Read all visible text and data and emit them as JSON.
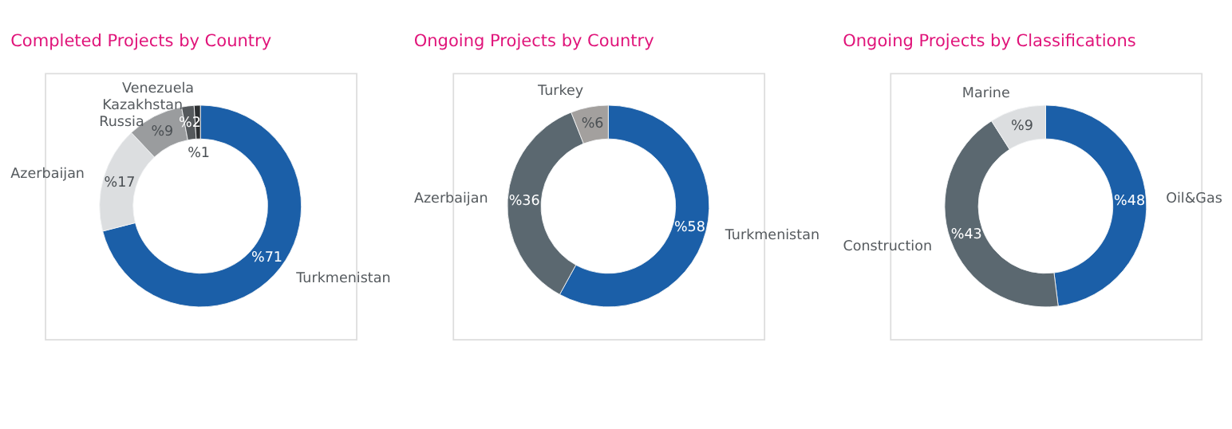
{
  "chart_data": [
    {
      "type": "donut",
      "title": "Completed Projects by Country",
      "categories": [
        "Turkmenistan",
        "Azerbaijan",
        "Russia",
        "Kazakhstan",
        "Venezuela"
      ],
      "values": [
        71,
        17,
        9,
        2,
        1
      ],
      "colors": [
        "#1b5fa8",
        "#dcdee0",
        "#9a9c9e",
        "#55595c",
        "#2c2f31"
      ],
      "value_labels": [
        "%71",
        "%17",
        "%9",
        "%2",
        "%1"
      ]
    },
    {
      "type": "donut",
      "title": "Ongoing Projects by Country",
      "categories": [
        "Turkmenistan",
        "Azerbaijan",
        "Turkey"
      ],
      "values": [
        58,
        36,
        6
      ],
      "colors": [
        "#1b5fa8",
        "#5b6870",
        "#a3a09e"
      ],
      "value_labels": [
        "%58",
        "%36",
        "%6"
      ]
    },
    {
      "type": "donut",
      "title": "Ongoing Projects by Classifications",
      "categories": [
        "Oil&Gas",
        "Construction",
        "Marine"
      ],
      "values": [
        48,
        43,
        9
      ],
      "colors": [
        "#1b5fa8",
        "#5b6870",
        "#dcdee0"
      ],
      "value_labels": [
        "%48",
        "%43",
        "%9"
      ]
    }
  ]
}
